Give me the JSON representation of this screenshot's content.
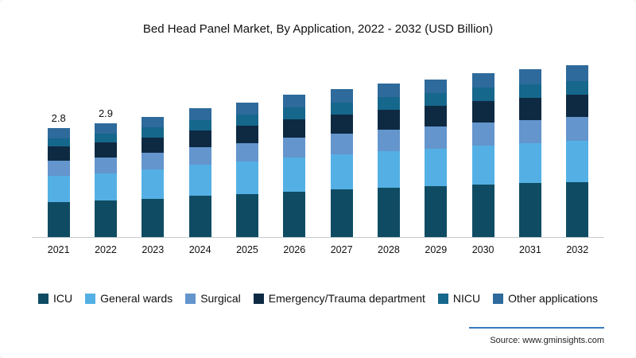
{
  "chart_data": {
    "type": "bar",
    "stacked": true,
    "title": "Bed Head Panel Market, By Application, 2022 - 2032 (USD Billion)",
    "categories": [
      "2021",
      "2022",
      "2023",
      "2024",
      "2025",
      "2026",
      "2027",
      "2028",
      "2029",
      "2030",
      "2031",
      "2032"
    ],
    "series": [
      {
        "name": "ICU",
        "color": "#0f4c64",
        "values": [
          0.9,
          0.93,
          0.99,
          1.06,
          1.1,
          1.17,
          1.22,
          1.26,
          1.3,
          1.34,
          1.38,
          1.41
        ]
      },
      {
        "name": "General wards",
        "color": "#54b0e4",
        "values": [
          0.67,
          0.7,
          0.74,
          0.79,
          0.83,
          0.88,
          0.91,
          0.95,
          0.97,
          1.01,
          1.03,
          1.06
        ]
      },
      {
        "name": "Surgical",
        "color": "#6495cd",
        "values": [
          0.39,
          0.41,
          0.43,
          0.46,
          0.48,
          0.51,
          0.53,
          0.55,
          0.57,
          0.59,
          0.6,
          0.62
        ]
      },
      {
        "name": "Emergency/Trauma department",
        "color": "#0e2a42",
        "values": [
          0.36,
          0.38,
          0.4,
          0.43,
          0.45,
          0.47,
          0.49,
          0.51,
          0.53,
          0.55,
          0.56,
          0.57
        ]
      },
      {
        "name": "NICU",
        "color": "#16678c",
        "values": [
          0.22,
          0.23,
          0.25,
          0.26,
          0.28,
          0.29,
          0.3,
          0.32,
          0.32,
          0.34,
          0.34,
          0.35
        ]
      },
      {
        "name": "Other applications",
        "color": "#2e6a9b",
        "values": [
          0.25,
          0.26,
          0.28,
          0.3,
          0.31,
          0.33,
          0.34,
          0.36,
          0.36,
          0.38,
          0.39,
          0.4
        ]
      }
    ],
    "value_labels": [
      "2.8",
      "2.9",
      null,
      null,
      null,
      null,
      null,
      null,
      null,
      null,
      null,
      null
    ],
    "ylim": [
      0,
      4.6
    ],
    "grid": false,
    "legend_position": "bottom"
  },
  "source": {
    "text": "Source: www.gminsights.com"
  }
}
